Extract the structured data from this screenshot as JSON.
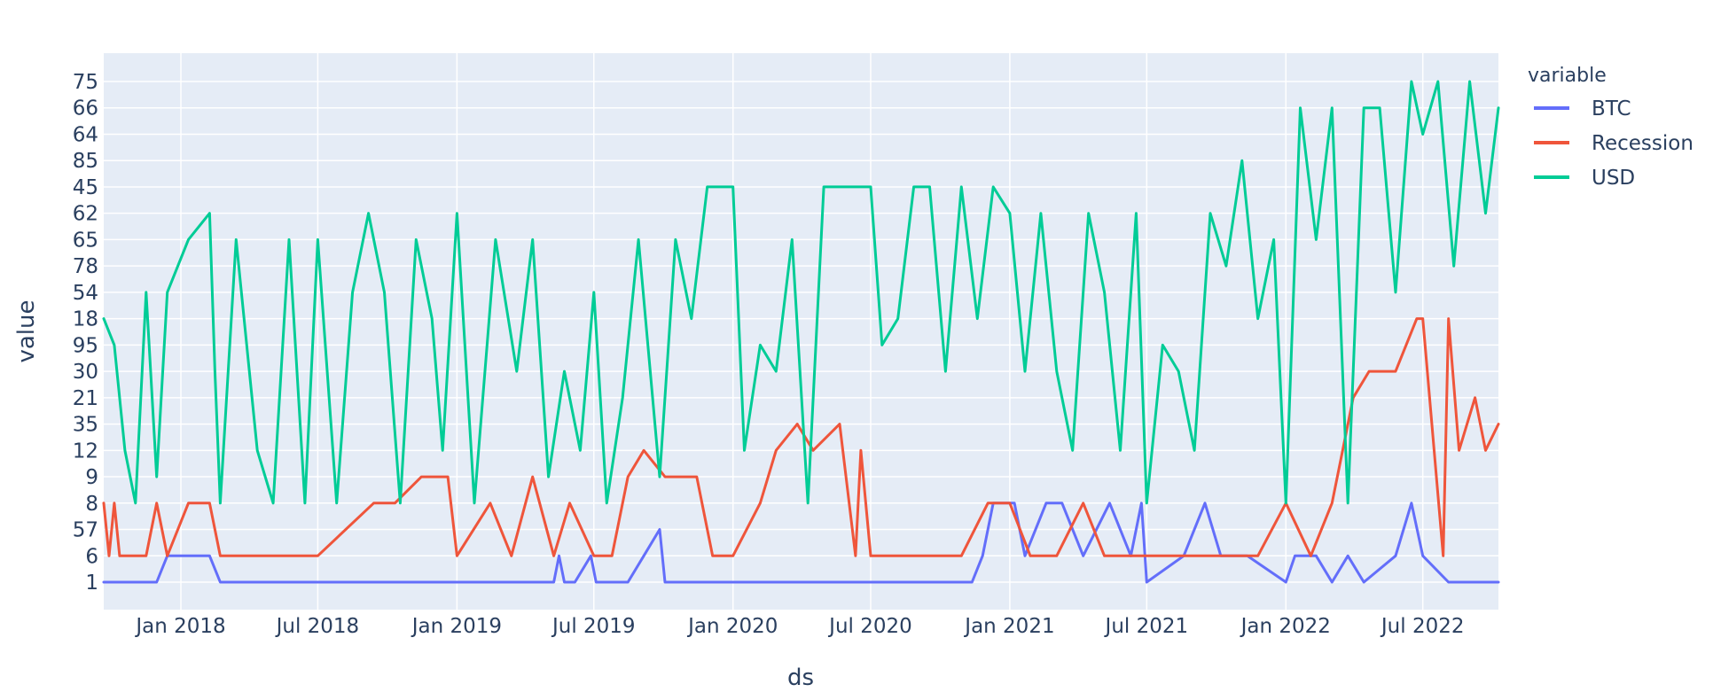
{
  "chart_data": {
    "type": "line",
    "xlabel": "ds",
    "ylabel": "value",
    "legend_title": "variable",
    "legend_position": "top-right",
    "grid": true,
    "x_range": [
      "2017-09-21",
      "2022-10-09"
    ],
    "x_ticks": [
      {
        "date": "2018-01-01",
        "label": "Jan 2018"
      },
      {
        "date": "2018-07-01",
        "label": "Jul 2018"
      },
      {
        "date": "2019-01-01",
        "label": "Jan 2019"
      },
      {
        "date": "2019-07-01",
        "label": "Jul 2019"
      },
      {
        "date": "2020-01-01",
        "label": "Jan 2020"
      },
      {
        "date": "2020-07-01",
        "label": "Jul 2020"
      },
      {
        "date": "2021-01-01",
        "label": "Jan 2021"
      },
      {
        "date": "2021-07-01",
        "label": "Jul 2021"
      },
      {
        "date": "2022-01-01",
        "label": "Jan 2022"
      },
      {
        "date": "2022-07-01",
        "label": "Jul 2022"
      }
    ],
    "y_categories": [
      "1",
      "6",
      "57",
      "8",
      "9",
      "12",
      "35",
      "21",
      "30",
      "95",
      "18",
      "54",
      "78",
      "65",
      "62",
      "45",
      "85",
      "64",
      "66",
      "75"
    ],
    "series": [
      {
        "name": "BTC",
        "color": "#636efa",
        "points": [
          [
            "2017-09-21",
            "1"
          ],
          [
            "2017-09-28",
            "1"
          ],
          [
            "2017-10-05",
            "1"
          ],
          [
            "2017-10-12",
            "1"
          ],
          [
            "2017-10-19",
            "1"
          ],
          [
            "2017-10-26",
            "1"
          ],
          [
            "2017-11-30",
            "1"
          ],
          [
            "2017-12-14",
            "6"
          ],
          [
            "2017-12-28",
            "6"
          ],
          [
            "2018-01-25",
            "6"
          ],
          [
            "2018-02-08",
            "6"
          ],
          [
            "2018-02-22",
            "1"
          ],
          [
            "2018-03-22",
            "1"
          ],
          [
            "2018-07-01",
            "1"
          ],
          [
            "2019-01-01",
            "1"
          ],
          [
            "2019-05-09",
            "1"
          ],
          [
            "2019-05-16",
            "6"
          ],
          [
            "2019-05-23",
            "1"
          ],
          [
            "2019-06-06",
            "1"
          ],
          [
            "2019-06-27",
            "6"
          ],
          [
            "2019-07-04",
            "1"
          ],
          [
            "2019-07-25",
            "1"
          ],
          [
            "2019-08-15",
            "1"
          ],
          [
            "2019-09-05",
            "6"
          ],
          [
            "2019-09-26",
            "57"
          ],
          [
            "2019-10-03",
            "1"
          ],
          [
            "2020-01-01",
            "1"
          ],
          [
            "2020-03-12",
            "1"
          ],
          [
            "2020-03-26",
            "1"
          ],
          [
            "2020-05-07",
            "1"
          ],
          [
            "2020-07-01",
            "1"
          ],
          [
            "2020-08-13",
            "1"
          ],
          [
            "2020-10-22",
            "1"
          ],
          [
            "2020-11-12",
            "1"
          ],
          [
            "2020-11-26",
            "6"
          ],
          [
            "2020-12-10",
            "8"
          ],
          [
            "2021-01-07",
            "8"
          ],
          [
            "2021-01-21",
            "6"
          ],
          [
            "2021-02-18",
            "8"
          ],
          [
            "2021-03-11",
            "8"
          ],
          [
            "2021-04-08",
            "6"
          ],
          [
            "2021-05-13",
            "8"
          ],
          [
            "2021-06-10",
            "6"
          ],
          [
            "2021-06-24",
            "8"
          ],
          [
            "2021-07-01",
            "1"
          ],
          [
            "2021-08-19",
            "6"
          ],
          [
            "2021-09-16",
            "8"
          ],
          [
            "2021-10-07",
            "6"
          ],
          [
            "2021-11-11",
            "6"
          ],
          [
            "2022-01-01",
            "1"
          ],
          [
            "2022-01-13",
            "6"
          ],
          [
            "2022-02-10",
            "6"
          ],
          [
            "2022-03-03",
            "1"
          ],
          [
            "2022-03-24",
            "6"
          ],
          [
            "2022-04-14",
            "1"
          ],
          [
            "2022-05-26",
            "6"
          ],
          [
            "2022-06-16",
            "8"
          ],
          [
            "2022-07-01",
            "6"
          ],
          [
            "2022-08-04",
            "1"
          ],
          [
            "2022-10-09",
            "1"
          ]
        ]
      },
      {
        "name": "Recession",
        "color": "#ef553b",
        "points": [
          [
            "2017-09-21",
            "8"
          ],
          [
            "2017-09-28",
            "6"
          ],
          [
            "2017-10-05",
            "8"
          ],
          [
            "2017-10-12",
            "6"
          ],
          [
            "2017-11-16",
            "6"
          ],
          [
            "2017-11-30",
            "8"
          ],
          [
            "2017-12-14",
            "6"
          ],
          [
            "2018-01-11",
            "8"
          ],
          [
            "2018-02-08",
            "8"
          ],
          [
            "2018-02-22",
            "6"
          ],
          [
            "2018-03-22",
            "6"
          ],
          [
            "2018-05-17",
            "6"
          ],
          [
            "2018-07-01",
            "6"
          ],
          [
            "2018-09-13",
            "8"
          ],
          [
            "2018-10-11",
            "8"
          ],
          [
            "2018-11-15",
            "9"
          ],
          [
            "2018-12-20",
            "9"
          ],
          [
            "2019-01-01",
            "6"
          ],
          [
            "2019-02-14",
            "8"
          ],
          [
            "2019-03-14",
            "6"
          ],
          [
            "2019-04-11",
            "9"
          ],
          [
            "2019-05-09",
            "6"
          ],
          [
            "2019-05-30",
            "8"
          ],
          [
            "2019-07-01",
            "6"
          ],
          [
            "2019-07-25",
            "6"
          ],
          [
            "2019-08-15",
            "9"
          ],
          [
            "2019-09-05",
            "12"
          ],
          [
            "2019-10-03",
            "9"
          ],
          [
            "2019-11-14",
            "9"
          ],
          [
            "2019-12-05",
            "6"
          ],
          [
            "2020-01-01",
            "6"
          ],
          [
            "2020-02-06",
            "8"
          ],
          [
            "2020-02-27",
            "12"
          ],
          [
            "2020-03-26",
            "35"
          ],
          [
            "2020-04-16",
            "12"
          ],
          [
            "2020-05-21",
            "35"
          ],
          [
            "2020-06-11",
            "6"
          ],
          [
            "2020-06-18",
            "12"
          ],
          [
            "2020-07-01",
            "6"
          ],
          [
            "2020-09-10",
            "6"
          ],
          [
            "2020-10-29",
            "6"
          ],
          [
            "2020-12-03",
            "8"
          ],
          [
            "2021-01-01",
            "8"
          ],
          [
            "2021-01-28",
            "6"
          ],
          [
            "2021-03-04",
            "6"
          ],
          [
            "2021-04-08",
            "8"
          ],
          [
            "2021-05-06",
            "6"
          ],
          [
            "2021-06-17",
            "6"
          ],
          [
            "2021-07-01",
            "6"
          ],
          [
            "2021-08-05",
            "6"
          ],
          [
            "2021-09-02",
            "6"
          ],
          [
            "2021-10-14",
            "6"
          ],
          [
            "2021-11-25",
            "6"
          ],
          [
            "2022-01-01",
            "8"
          ],
          [
            "2022-02-03",
            "6"
          ],
          [
            "2022-03-03",
            "8"
          ],
          [
            "2022-03-17",
            "12"
          ],
          [
            "2022-03-31",
            "21"
          ],
          [
            "2022-04-21",
            "30"
          ],
          [
            "2022-05-26",
            "30"
          ],
          [
            "2022-06-23",
            "18"
          ],
          [
            "2022-07-01",
            "18"
          ],
          [
            "2022-07-28",
            "6"
          ],
          [
            "2022-08-04",
            "18"
          ],
          [
            "2022-08-18",
            "12"
          ],
          [
            "2022-09-08",
            "21"
          ],
          [
            "2022-09-22",
            "12"
          ],
          [
            "2022-10-09",
            "35"
          ]
        ]
      },
      {
        "name": "USD",
        "color": "#00cc96",
        "points": [
          [
            "2017-09-21",
            "18"
          ],
          [
            "2017-10-05",
            "95"
          ],
          [
            "2017-10-19",
            "12"
          ],
          [
            "2017-11-02",
            "8"
          ],
          [
            "2017-11-16",
            "54"
          ],
          [
            "2017-11-30",
            "9"
          ],
          [
            "2017-12-14",
            "54"
          ],
          [
            "2018-01-11",
            "65"
          ],
          [
            "2018-02-08",
            "62"
          ],
          [
            "2018-02-15",
            "30"
          ],
          [
            "2018-02-22",
            "8"
          ],
          [
            "2018-03-15",
            "65"
          ],
          [
            "2018-04-12",
            "12"
          ],
          [
            "2018-05-03",
            "8"
          ],
          [
            "2018-05-24",
            "65"
          ],
          [
            "2018-06-14",
            "8"
          ],
          [
            "2018-07-01",
            "65"
          ],
          [
            "2018-07-26",
            "8"
          ],
          [
            "2018-08-16",
            "54"
          ],
          [
            "2018-09-06",
            "62"
          ],
          [
            "2018-09-27",
            "54"
          ],
          [
            "2018-10-18",
            "8"
          ],
          [
            "2018-11-08",
            "65"
          ],
          [
            "2018-11-29",
            "18"
          ],
          [
            "2018-12-13",
            "12"
          ],
          [
            "2019-01-01",
            "62"
          ],
          [
            "2019-01-24",
            "8"
          ],
          [
            "2019-02-21",
            "65"
          ],
          [
            "2019-03-21",
            "30"
          ],
          [
            "2019-04-11",
            "65"
          ],
          [
            "2019-05-02",
            "9"
          ],
          [
            "2019-05-23",
            "30"
          ],
          [
            "2019-06-13",
            "12"
          ],
          [
            "2019-07-01",
            "54"
          ],
          [
            "2019-07-18",
            "8"
          ],
          [
            "2019-08-08",
            "21"
          ],
          [
            "2019-08-29",
            "65"
          ],
          [
            "2019-09-26",
            "9"
          ],
          [
            "2019-10-17",
            "65"
          ],
          [
            "2019-11-07",
            "18"
          ],
          [
            "2019-11-28",
            "45"
          ],
          [
            "2019-12-12",
            "45"
          ],
          [
            "2020-01-01",
            "45"
          ],
          [
            "2020-01-16",
            "12"
          ],
          [
            "2020-02-06",
            "95"
          ],
          [
            "2020-02-27",
            "30"
          ],
          [
            "2020-03-19",
            "65"
          ],
          [
            "2020-04-09",
            "8"
          ],
          [
            "2020-04-30",
            "45"
          ],
          [
            "2020-05-21",
            "45"
          ],
          [
            "2020-06-11",
            "45"
          ],
          [
            "2020-07-01",
            "45"
          ],
          [
            "2020-07-16",
            "95"
          ],
          [
            "2020-08-06",
            "18"
          ],
          [
            "2020-08-27",
            "45"
          ],
          [
            "2020-09-17",
            "45"
          ],
          [
            "2020-10-08",
            "30"
          ],
          [
            "2020-10-29",
            "45"
          ],
          [
            "2020-11-19",
            "18"
          ],
          [
            "2020-12-10",
            "45"
          ],
          [
            "2021-01-01",
            "62"
          ],
          [
            "2021-01-21",
            "30"
          ],
          [
            "2021-02-11",
            "62"
          ],
          [
            "2021-03-04",
            "30"
          ],
          [
            "2021-03-25",
            "12"
          ],
          [
            "2021-04-15",
            "62"
          ],
          [
            "2021-05-06",
            "54"
          ],
          [
            "2021-05-27",
            "12"
          ],
          [
            "2021-06-17",
            "62"
          ],
          [
            "2021-07-01",
            "8"
          ],
          [
            "2021-07-22",
            "95"
          ],
          [
            "2021-08-12",
            "30"
          ],
          [
            "2021-09-02",
            "12"
          ],
          [
            "2021-09-23",
            "62"
          ],
          [
            "2021-10-14",
            "78"
          ],
          [
            "2021-11-04",
            "85"
          ],
          [
            "2021-11-25",
            "18"
          ],
          [
            "2021-12-16",
            "65"
          ],
          [
            "2022-01-01",
            "8"
          ],
          [
            "2022-01-20",
            "66"
          ],
          [
            "2022-02-10",
            "65"
          ],
          [
            "2022-03-03",
            "66"
          ],
          [
            "2022-03-24",
            "8"
          ],
          [
            "2022-04-14",
            "66"
          ],
          [
            "2022-05-05",
            "66"
          ],
          [
            "2022-05-26",
            "54"
          ],
          [
            "2022-06-16",
            "75"
          ],
          [
            "2022-07-01",
            "64"
          ],
          [
            "2022-07-21",
            "75"
          ],
          [
            "2022-08-11",
            "78"
          ],
          [
            "2022-09-01",
            "75"
          ],
          [
            "2022-09-22",
            "62"
          ],
          [
            "2022-10-09",
            "66"
          ]
        ]
      }
    ]
  }
}
